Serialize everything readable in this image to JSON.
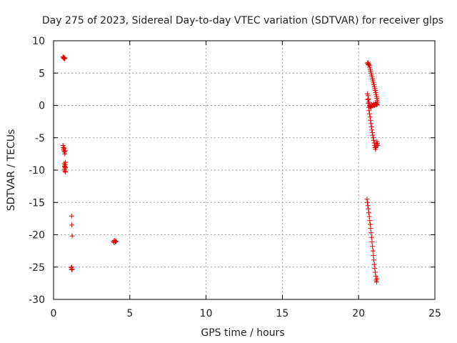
{
  "chart_data": {
    "type": "scatter",
    "title": "Day 275 of 2023, Sidereal Day-to-day VTEC variation (SDTVAR) for receiver glps",
    "xlabel": "GPS time / hours",
    "ylabel": "SDTVAR / TECUs",
    "xlim": [
      0,
      25
    ],
    "ylim": [
      -30,
      10
    ],
    "xticks": [
      0,
      5,
      10,
      15,
      20,
      25
    ],
    "yticks": [
      -30,
      -25,
      -20,
      -15,
      -10,
      -5,
      0,
      5,
      10
    ],
    "x_tick_labels": [
      "0",
      "5",
      "10",
      "15",
      "20",
      "25"
    ],
    "y_tick_labels": [
      "-30",
      "-25",
      "-20",
      "-15",
      "-10",
      "-5",
      "0",
      "5",
      "10"
    ],
    "grid": true,
    "marker": "+",
    "color": "#e00000",
    "series": [
      {
        "name": "SDTVAR",
        "x": [
          0.62,
          0.65,
          0.68,
          0.71,
          0.74,
          0.62,
          0.64,
          0.66,
          0.68,
          0.7,
          0.72,
          0.74,
          0.76,
          0.7,
          0.72,
          0.74,
          0.76,
          0.78,
          0.78,
          0.72,
          0.74,
          0.76,
          0.78,
          1.18,
          1.2,
          1.22,
          1.16,
          1.18,
          1.2,
          1.22,
          3.93,
          3.97,
          4.01,
          4.05,
          4.09,
          20.58,
          20.61,
          20.64,
          20.67,
          20.7,
          20.73,
          20.76,
          20.79,
          20.82,
          20.85,
          20.88,
          20.91,
          20.94,
          20.97,
          21.0,
          21.03,
          21.06,
          21.09,
          21.12,
          21.15,
          21.18,
          21.2,
          21.22,
          21.24,
          21.22,
          21.19,
          21.16,
          21.13,
          21.1,
          21.07,
          21.04,
          21.01,
          20.98,
          20.95,
          20.92,
          20.89,
          20.86,
          20.83,
          20.8,
          20.77,
          20.74,
          20.71,
          20.68,
          20.65,
          20.62,
          20.59,
          20.6,
          20.63,
          20.66,
          20.69,
          20.72,
          20.75,
          20.78,
          20.81,
          20.84,
          20.87,
          20.9,
          20.93,
          20.96,
          20.99,
          21.02,
          21.05,
          21.08,
          21.11,
          21.14,
          21.17,
          21.2,
          21.23,
          21.26,
          20.55,
          20.58,
          20.61,
          20.64,
          20.67,
          20.7,
          20.73,
          20.76,
          20.79,
          20.82,
          20.85,
          20.88,
          20.91,
          20.94,
          20.97,
          21.0,
          21.03,
          21.06,
          21.09,
          21.12,
          21.15,
          21.18,
          21.21
        ],
        "y": [
          7.5,
          7.3,
          7.4,
          7.2,
          7.3,
          -6.2,
          -6.5,
          -6.8,
          -7.0,
          -6.6,
          -7.2,
          -7.5,
          -7.0,
          -9.0,
          -9.4,
          -9.8,
          -10.2,
          -9.6,
          -8.8,
          -10.0,
          -9.5,
          -9.2,
          -10.3,
          -17.1,
          -18.5,
          -20.2,
          -25.1,
          -25.4,
          -25.0,
          -25.3,
          -21.0,
          -21.2,
          -20.9,
          -21.1,
          -21.0,
          6.5,
          6.6,
          6.3,
          6.4,
          6.2,
          5.9,
          5.6,
          5.3,
          5.0,
          4.7,
          4.4,
          4.1,
          3.8,
          3.5,
          3.2,
          2.9,
          2.6,
          2.3,
          2.0,
          1.7,
          1.4,
          1.1,
          0.8,
          0.5,
          0.2,
          0.1,
          0.2,
          0.3,
          0.2,
          0.1,
          0.0,
          0.1,
          0.2,
          0.0,
          -0.1,
          0.0,
          0.1,
          -0.2,
          -0.3,
          -0.2,
          -0.1,
          0.0,
          0.5,
          1.0,
          1.5,
          1.8,
          0.9,
          0.3,
          -0.3,
          -0.8,
          -1.3,
          -1.8,
          -2.3,
          -2.8,
          -3.3,
          -3.8,
          -4.2,
          -4.6,
          -5.0,
          -5.4,
          -5.8,
          -6.2,
          -6.5,
          -6.8,
          -6.4,
          -6.0,
          -5.6,
          -5.9,
          -6.2,
          -14.5,
          -15.0,
          -15.5,
          -16.0,
          -16.6,
          -17.2,
          -17.8,
          -18.4,
          -19.0,
          -19.7,
          -20.4,
          -21.1,
          -21.8,
          -22.5,
          -23.2,
          -23.9,
          -24.6,
          -25.2,
          -25.8,
          -26.4,
          -27.0,
          -27.3,
          -26.8
        ]
      }
    ]
  }
}
